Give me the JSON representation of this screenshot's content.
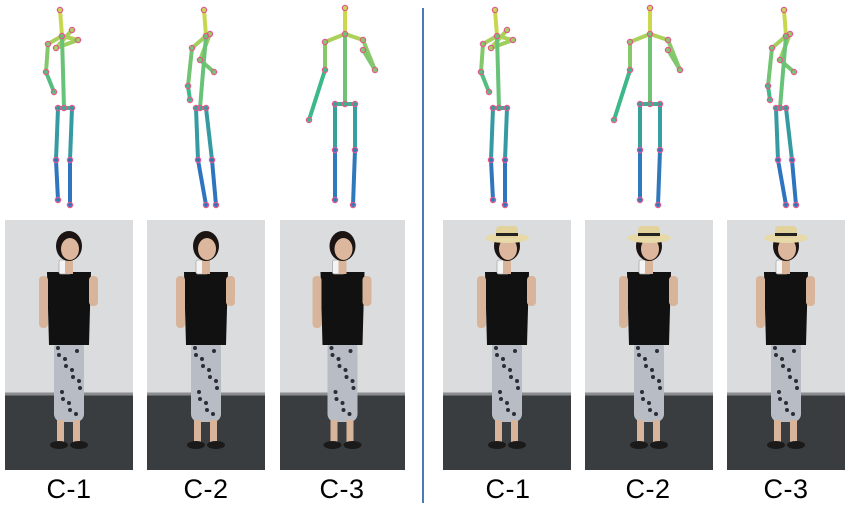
{
  "groups": [
    {
      "cameras": [
        {
          "label": "C-1",
          "pose": "drink-left",
          "hat": false
        },
        {
          "label": "C-2",
          "pose": "drink-side",
          "hat": false
        },
        {
          "label": "C-3",
          "pose": "drink-front",
          "hat": false
        }
      ]
    },
    {
      "cameras": [
        {
          "label": "C-1",
          "pose": "drink-left",
          "hat": true
        },
        {
          "label": "C-2",
          "pose": "drink-front",
          "hat": true
        },
        {
          "label": "C-3",
          "pose": "drink-side",
          "hat": true
        }
      ]
    }
  ],
  "colors": {
    "divider": "#4a7ab8",
    "skeleton_top": "#f5e13a",
    "skeleton_mid": "#3cb88a",
    "skeleton_low": "#2a5fd0",
    "joint": "#e05a8a"
  }
}
